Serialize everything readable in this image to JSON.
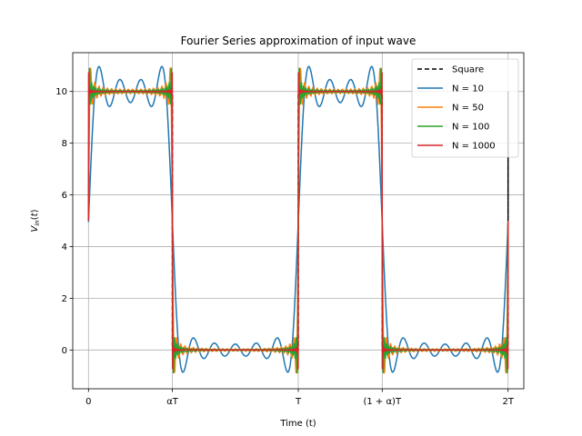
{
  "chart_data": {
    "type": "line",
    "title": "Fourier Series approximation of input wave",
    "xlabel": "Time (t)",
    "ylabel": "V_in(t)",
    "xlim": [
      -0.075,
      2.075
    ],
    "ylim": [
      -1.5,
      11.5
    ],
    "grid": true,
    "legend_position": "top-right",
    "period": 1,
    "duty_cycle": 0.4,
    "amplitude": 10,
    "x_ticks": [
      {
        "value": 0,
        "label": "0"
      },
      {
        "value": 0.4,
        "label": "αT"
      },
      {
        "value": 1,
        "label": "T"
      },
      {
        "value": 1.4,
        "label": "(1 + α)T"
      },
      {
        "value": 2,
        "label": "2T"
      }
    ],
    "y_ticks": [
      0,
      2,
      4,
      6,
      8,
      10
    ],
    "series": [
      {
        "name": "Square",
        "harmonics": null,
        "color": "#000000",
        "dash": "5,3"
      },
      {
        "name": "N = 10",
        "harmonics": 10,
        "color": "#1f77b4",
        "dash": ""
      },
      {
        "name": "N = 50",
        "harmonics": 50,
        "color": "#ff7f0e",
        "dash": ""
      },
      {
        "name": "N = 100",
        "harmonics": 100,
        "color": "#2ca02c",
        "dash": ""
      },
      {
        "name": "N = 1000",
        "harmonics": 1000,
        "color": "#d62728",
        "dash": ""
      }
    ]
  }
}
